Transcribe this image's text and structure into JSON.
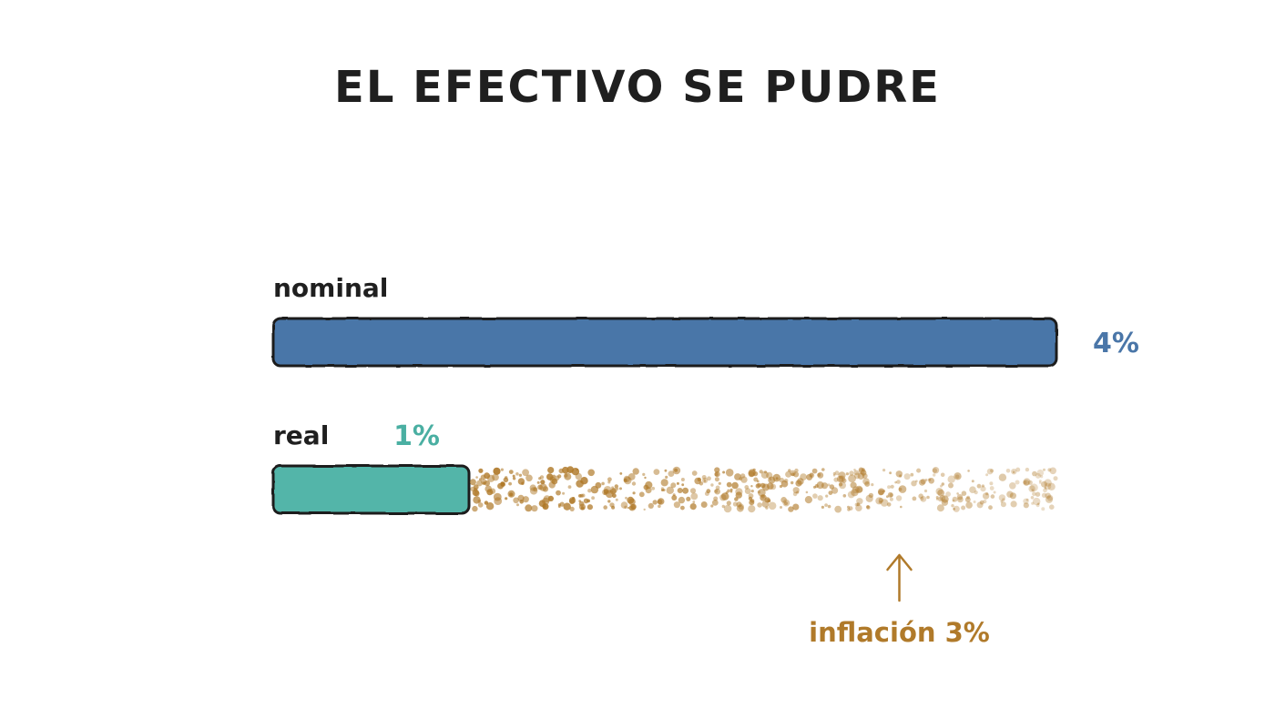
{
  "chart_data": {
    "type": "bar",
    "title": "EL EFECTIVO SE PUDRE",
    "xlim": [
      0,
      4
    ],
    "categories": [
      "nominal",
      "real"
    ],
    "values": [
      4,
      1
    ],
    "value_labels": [
      "4%",
      "1%"
    ],
    "series_colors": [
      "#4a76a8",
      "#52b5a9"
    ],
    "label_colors": [
      "#4a76a8",
      "#4aafa2"
    ],
    "annotation": {
      "text": "inflación 3%",
      "value": 3,
      "from": 1,
      "to": 4,
      "color": "#b07a2a",
      "style": "dissolving dots with upward arrow"
    },
    "grid": false,
    "legend": "none"
  }
}
